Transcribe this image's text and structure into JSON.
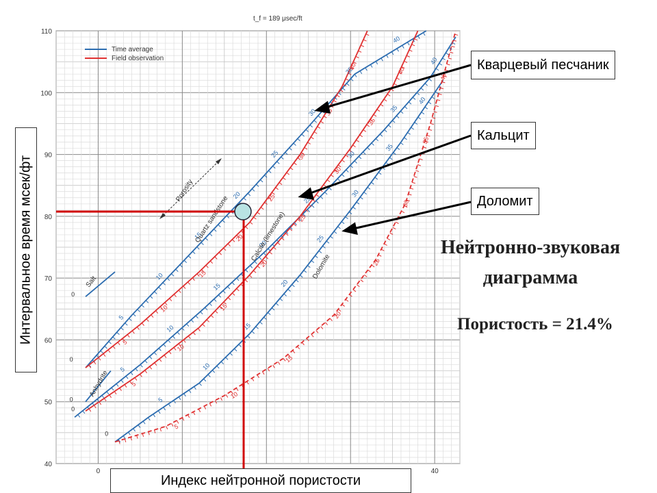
{
  "header": {
    "title": "t_f = 189 μsec/ft"
  },
  "legend": [
    {
      "label": "Time average",
      "color": "#2b6cb0"
    },
    {
      "label": "Field observation",
      "color": "#e03030"
    }
  ],
  "annotations": {
    "sandstone": "Кварцевый песчаник",
    "calcite": "Кальцит",
    "dolomite": "Доломит",
    "right_title_line1": "Нейтронно-звуковая",
    "right_title_line2": "диаграмма",
    "porosity_result": "Пористость = 21.4%"
  },
  "axes": {
    "ylabel": "Интервальное время мсек/фт",
    "xlabel": "Индекс нейтронной пористости"
  },
  "chart_labels": {
    "salt": "Salt",
    "anhydrite": "Anhydrite",
    "quartz": "Quartz sandstone",
    "calcite": "Calcite (limestone)",
    "dolomite": "Dolomite",
    "porosity": "Porosity"
  },
  "chart_data": {
    "type": "line",
    "title": "t_f = 189 μsec/ft",
    "xlabel": "Индекс нейтронной пористости",
    "ylabel": "Интервальное время мсек/фт",
    "xlim": [
      -5,
      43
    ],
    "ylim": [
      40,
      110
    ],
    "x_ticks": [
      0,
      40
    ],
    "y_ticks": [
      40,
      50,
      60,
      70,
      80,
      90,
      100,
      110
    ],
    "grid": true,
    "legend_position": "top-left",
    "series": [
      {
        "name": "Time average",
        "lithology": "Quartz sandstone",
        "color": "#2b6cb0",
        "dash": false,
        "x": [
          -1.5,
          4,
          11,
          18,
          25,
          30.5,
          39
        ],
        "y": [
          55.5,
          64,
          74,
          84,
          94.5,
          103,
          110
        ]
      },
      {
        "name": "Field observation",
        "lithology": "Quartz sandstone",
        "color": "#e03030",
        "dash": false,
        "x": [
          -1.5,
          5,
          12,
          18,
          24,
          29,
          32
        ],
        "y": [
          55.5,
          62.5,
          71,
          79,
          90,
          101,
          110
        ]
      },
      {
        "name": "Time average",
        "lithology": "Calcite (limestone)",
        "color": "#2b6cb0",
        "dash": false,
        "x": [
          -2.8,
          5,
          12.5,
          20,
          27,
          34,
          39.5,
          42.5
        ],
        "y": [
          47.5,
          56,
          65,
          74.5,
          84,
          94,
          102.5,
          109
        ]
      },
      {
        "name": "Field observation",
        "lithology": "Calcite (limestone)",
        "color": "#e03030",
        "dash": false,
        "x": [
          -1.5,
          5,
          12,
          18,
          24,
          30,
          35,
          38
        ],
        "y": [
          48.5,
          54.5,
          62,
          70.5,
          80,
          91,
          101,
          110
        ]
      },
      {
        "name": "Time average",
        "lithology": "Dolomite",
        "color": "#2b6cb0",
        "dash": false,
        "x": [
          2,
          6,
          12,
          18,
          24,
          30,
          36,
          41
        ],
        "y": [
          43.5,
          47.5,
          53,
          61,
          70.5,
          81,
          92,
          102
        ]
      },
      {
        "name": "Field observation",
        "lithology": "Dolomite",
        "color": "#e03030",
        "dash": true,
        "x": [
          2,
          8,
          15,
          22,
          28,
          33,
          36.5,
          39.5,
          42.5
        ],
        "y": [
          43.5,
          46,
          51,
          57,
          64,
          73,
          82,
          95,
          110
        ]
      },
      {
        "name": "Salt",
        "color": "#2b6cb0",
        "dash": false,
        "x": [
          -1.5,
          2
        ],
        "y": [
          67,
          71
        ]
      },
      {
        "name": "Anhydrite",
        "color": "#2b6cb0",
        "dash": false,
        "x": [
          -1.5,
          1.5
        ],
        "y": [
          50,
          55
        ]
      }
    ],
    "porosity_ticks": {
      "sandstone_blue": [
        "5",
        "10",
        "15",
        "20",
        "25",
        "30",
        "35",
        "40"
      ],
      "calcite_blue": [
        "5",
        "10",
        "15",
        "20",
        "25",
        "30",
        "35",
        "40"
      ],
      "dolomite_blue": [
        "5",
        "10",
        "15",
        "20",
        "25",
        "30",
        "35",
        "40"
      ],
      "red": [
        "5",
        "10",
        "15",
        "20",
        "25",
        "30",
        "35",
        "40"
      ]
    },
    "zero_labels": [
      "0",
      "0",
      "0",
      "0",
      "0"
    ],
    "reading": {
      "x": 18.2,
      "y": 80.8,
      "porosity": 21.4
    }
  }
}
